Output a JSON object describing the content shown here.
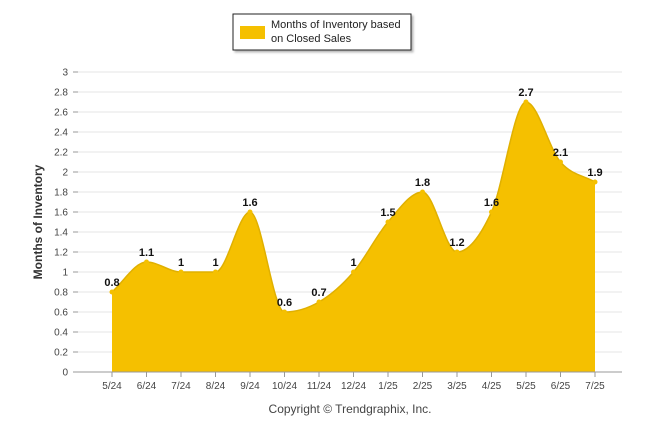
{
  "chart_data": {
    "type": "area",
    "categories": [
      "5/24",
      "6/24",
      "7/24",
      "8/24",
      "9/24",
      "10/24",
      "11/24",
      "12/24",
      "1/25",
      "2/25",
      "3/25",
      "4/25",
      "5/25",
      "6/25",
      "7/25"
    ],
    "series": [
      {
        "name": "Months of Inventory based on Closed Sales",
        "values": [
          0.8,
          1.1,
          1,
          1,
          1.6,
          0.6,
          0.7,
          1,
          1.5,
          1.8,
          1.2,
          1.6,
          2.7,
          2.1,
          1.9
        ],
        "data_labels": [
          "0.8",
          "1.1",
          "1",
          "1",
          "1.6",
          "0.6",
          "0.7",
          "1",
          "1.5",
          "1.8",
          "1.2",
          "1.6",
          "2.7",
          "2.1",
          "1.9"
        ],
        "color": "#F5C000"
      }
    ],
    "legend": {
      "lines": [
        "Months of Inventory based",
        "on Closed Sales"
      ],
      "position": "top-center"
    },
    "ylabel": "Months of Inventory",
    "xlabel": "",
    "ylim": [
      0,
      3
    ],
    "yticks": [
      0,
      0.2,
      0.4,
      0.6,
      0.8,
      1,
      1.2,
      1.4,
      1.6,
      1.8,
      2,
      2.2,
      2.4,
      2.6,
      2.8,
      3
    ],
    "ytick_labels": [
      "0",
      "0.2",
      "0.4",
      "0.6",
      "0.8",
      "1",
      "1.2",
      "1.4",
      "1.6",
      "1.8",
      "2",
      "2.2",
      "2.4",
      "2.6",
      "2.8",
      "3"
    ],
    "grid": true,
    "footer": "Copyright © Trendgraphix, Inc."
  }
}
